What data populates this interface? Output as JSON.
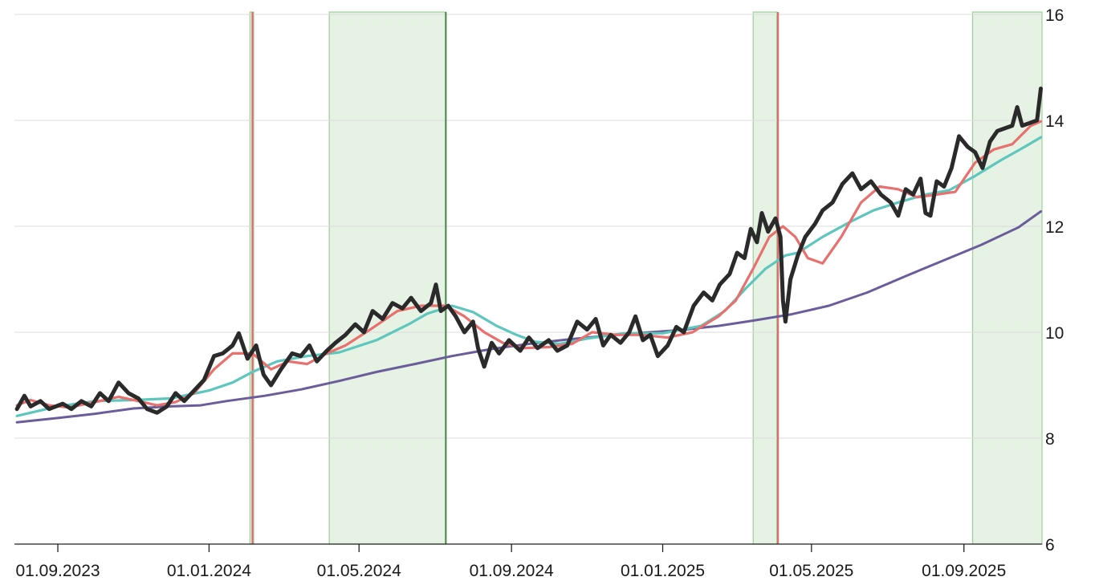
{
  "chart_data": {
    "type": "line",
    "title": "",
    "xlabel": "",
    "ylabel": "",
    "x_range": [
      "2023-07-28",
      "2025-11-03"
    ],
    "ylim": [
      6,
      16
    ],
    "y_axis_position": "right",
    "grid": "horizontal",
    "x_ticks": [
      {
        "date": "2023-09-01",
        "label": "01.09.2023"
      },
      {
        "date": "2024-01-01",
        "label": "01.01.2024"
      },
      {
        "date": "2024-05-01",
        "label": "01.05.2024"
      },
      {
        "date": "2024-09-01",
        "label": "01.09.2024"
      },
      {
        "date": "2025-01-01",
        "label": "01.01.2025"
      },
      {
        "date": "2025-05-01",
        "label": "01.05.2025"
      },
      {
        "date": "2025-09-01",
        "label": "01.09.2025"
      }
    ],
    "y_ticks": [
      {
        "value": 6,
        "label": "6"
      },
      {
        "value": 8,
        "label": "8"
      },
      {
        "value": 10,
        "label": "10"
      },
      {
        "value": 12,
        "label": "12"
      },
      {
        "value": 14,
        "label": "14"
      },
      {
        "value": 16,
        "label": "16"
      }
    ],
    "shaded_periods": [
      {
        "start": "2024-02-03",
        "end": "2024-02-06",
        "color": "#e6f2e4",
        "edge": "#9ccf98"
      },
      {
        "start": "2024-04-07",
        "end": "2024-07-10",
        "color": "#e6f2e4",
        "edge": "#9ccf98"
      },
      {
        "start": "2025-03-15",
        "end": "2025-04-03",
        "color": "#e6f2e4",
        "edge": "#9ccf98"
      },
      {
        "start": "2025-09-08",
        "end": "2025-11-03",
        "color": "#e6f2e4",
        "edge": "#9ccf98"
      }
    ],
    "vertical_lines": [
      {
        "date": "2024-02-05",
        "color": "#e06b6b"
      },
      {
        "date": "2024-07-10",
        "color": "#4f8f4f"
      },
      {
        "date": "2025-04-04",
        "color": "#e06b6b"
      }
    ],
    "series": [
      {
        "color": "#6a5d9a",
        "width": 3,
        "points": [
          [
            "2023-07-30",
            8.3
          ],
          [
            "2023-09-01",
            8.38
          ],
          [
            "2023-10-01",
            8.46
          ],
          [
            "2023-11-01",
            8.56
          ],
          [
            "2023-12-01",
            8.6
          ],
          [
            "2023-12-25",
            8.62
          ],
          [
            "2024-01-15",
            8.7
          ],
          [
            "2024-02-15",
            8.8
          ],
          [
            "2024-03-15",
            8.92
          ],
          [
            "2024-04-15",
            9.08
          ],
          [
            "2024-05-15",
            9.25
          ],
          [
            "2024-06-15",
            9.4
          ],
          [
            "2024-07-15",
            9.55
          ],
          [
            "2024-08-15",
            9.68
          ],
          [
            "2024-09-15",
            9.78
          ],
          [
            "2024-10-15",
            9.86
          ],
          [
            "2024-11-15",
            9.93
          ],
          [
            "2024-12-15",
            9.99
          ],
          [
            "2025-01-15",
            10.04
          ],
          [
            "2025-02-15",
            10.12
          ],
          [
            "2025-03-15",
            10.22
          ],
          [
            "2025-04-15",
            10.34
          ],
          [
            "2025-05-15",
            10.5
          ],
          [
            "2025-06-15",
            10.75
          ],
          [
            "2025-07-15",
            11.05
          ],
          [
            "2025-08-15",
            11.35
          ],
          [
            "2025-09-15",
            11.65
          ],
          [
            "2025-10-15",
            11.98
          ],
          [
            "2025-11-02",
            12.28
          ]
        ]
      },
      {
        "color": "#5ec7bd",
        "width": 3.2,
        "points": [
          [
            "2023-07-30",
            8.42
          ],
          [
            "2023-09-01",
            8.6
          ],
          [
            "2023-10-01",
            8.7
          ],
          [
            "2023-11-01",
            8.72
          ],
          [
            "2023-12-01",
            8.75
          ],
          [
            "2024-01-01",
            8.9
          ],
          [
            "2024-01-20",
            9.05
          ],
          [
            "2024-02-05",
            9.25
          ],
          [
            "2024-02-25",
            9.45
          ],
          [
            "2024-03-20",
            9.55
          ],
          [
            "2024-04-15",
            9.62
          ],
          [
            "2024-05-15",
            9.85
          ],
          [
            "2024-06-10",
            10.15
          ],
          [
            "2024-06-25",
            10.35
          ],
          [
            "2024-07-15",
            10.5
          ],
          [
            "2024-08-01",
            10.38
          ],
          [
            "2024-08-20",
            10.12
          ],
          [
            "2024-09-05",
            9.95
          ],
          [
            "2024-09-20",
            9.82
          ],
          [
            "2024-10-10",
            9.78
          ],
          [
            "2024-11-01",
            9.88
          ],
          [
            "2024-12-01",
            9.98
          ],
          [
            "2025-01-01",
            9.98
          ],
          [
            "2025-02-01",
            10.12
          ],
          [
            "2025-02-20",
            10.4
          ],
          [
            "2025-03-10",
            10.85
          ],
          [
            "2025-03-25",
            11.2
          ],
          [
            "2025-04-10",
            11.45
          ],
          [
            "2025-04-20",
            11.5
          ],
          [
            "2025-05-10",
            11.8
          ],
          [
            "2025-06-01",
            12.08
          ],
          [
            "2025-06-20",
            12.3
          ],
          [
            "2025-07-10",
            12.45
          ],
          [
            "2025-08-01",
            12.6
          ],
          [
            "2025-08-20",
            12.68
          ],
          [
            "2025-09-10",
            12.95
          ],
          [
            "2025-10-01",
            13.25
          ],
          [
            "2025-10-20",
            13.5
          ],
          [
            "2025-11-02",
            13.68
          ]
        ]
      },
      {
        "color": "#e8706e",
        "width": 3.2,
        "points": [
          [
            "2023-07-30",
            8.62
          ],
          [
            "2023-08-10",
            8.72
          ],
          [
            "2023-08-25",
            8.62
          ],
          [
            "2023-09-10",
            8.58
          ],
          [
            "2023-10-01",
            8.68
          ],
          [
            "2023-10-20",
            8.78
          ],
          [
            "2023-11-05",
            8.7
          ],
          [
            "2023-11-20",
            8.62
          ],
          [
            "2023-12-05",
            8.68
          ],
          [
            "2023-12-20",
            8.85
          ],
          [
            "2024-01-05",
            9.3
          ],
          [
            "2024-01-20",
            9.6
          ],
          [
            "2024-02-05",
            9.6
          ],
          [
            "2024-02-20",
            9.3
          ],
          [
            "2024-03-05",
            9.45
          ],
          [
            "2024-03-20",
            9.4
          ],
          [
            "2024-04-05",
            9.6
          ],
          [
            "2024-04-20",
            9.75
          ],
          [
            "2024-05-10",
            10.05
          ],
          [
            "2024-06-01",
            10.4
          ],
          [
            "2024-06-20",
            10.5
          ],
          [
            "2024-07-10",
            10.5
          ],
          [
            "2024-07-25",
            10.3
          ],
          [
            "2024-08-10",
            10.0
          ],
          [
            "2024-08-25",
            9.8
          ],
          [
            "2024-09-10",
            9.7
          ],
          [
            "2024-10-01",
            9.72
          ],
          [
            "2024-10-20",
            9.78
          ],
          [
            "2024-11-05",
            10.0
          ],
          [
            "2024-11-25",
            9.95
          ],
          [
            "2024-12-15",
            9.95
          ],
          [
            "2025-01-05",
            9.9
          ],
          [
            "2025-01-25",
            10.0
          ],
          [
            "2025-02-15",
            10.3
          ],
          [
            "2025-03-01",
            10.6
          ],
          [
            "2025-03-15",
            11.2
          ],
          [
            "2025-03-28",
            11.8
          ],
          [
            "2025-04-08",
            12.0
          ],
          [
            "2025-04-18",
            11.8
          ],
          [
            "2025-04-28",
            11.4
          ],
          [
            "2025-05-10",
            11.3
          ],
          [
            "2025-05-25",
            11.8
          ],
          [
            "2025-06-10",
            12.45
          ],
          [
            "2025-06-25",
            12.75
          ],
          [
            "2025-07-10",
            12.7
          ],
          [
            "2025-07-25",
            12.55
          ],
          [
            "2025-08-10",
            12.6
          ],
          [
            "2025-08-25",
            12.65
          ],
          [
            "2025-09-10",
            13.2
          ],
          [
            "2025-09-25",
            13.45
          ],
          [
            "2025-10-10",
            13.55
          ],
          [
            "2025-10-25",
            13.9
          ],
          [
            "2025-11-02",
            13.98
          ]
        ]
      },
      {
        "color": "#2a2a2a",
        "width": 5,
        "points": [
          [
            "2023-07-30",
            8.55
          ],
          [
            "2023-08-05",
            8.8
          ],
          [
            "2023-08-10",
            8.6
          ],
          [
            "2023-08-18",
            8.7
          ],
          [
            "2023-08-25",
            8.55
          ],
          [
            "2023-09-05",
            8.65
          ],
          [
            "2023-09-12",
            8.55
          ],
          [
            "2023-09-20",
            8.7
          ],
          [
            "2023-09-28",
            8.6
          ],
          [
            "2023-10-05",
            8.85
          ],
          [
            "2023-10-12",
            8.7
          ],
          [
            "2023-10-20",
            9.05
          ],
          [
            "2023-10-28",
            8.85
          ],
          [
            "2023-11-05",
            8.75
          ],
          [
            "2023-11-12",
            8.55
          ],
          [
            "2023-11-20",
            8.48
          ],
          [
            "2023-11-28",
            8.6
          ],
          [
            "2023-12-05",
            8.85
          ],
          [
            "2023-12-12",
            8.7
          ],
          [
            "2023-12-20",
            8.9
          ],
          [
            "2023-12-28",
            9.1
          ],
          [
            "2024-01-05",
            9.55
          ],
          [
            "2024-01-12",
            9.6
          ],
          [
            "2024-01-20",
            9.75
          ],
          [
            "2024-01-25",
            9.98
          ],
          [
            "2024-02-01",
            9.5
          ],
          [
            "2024-02-08",
            9.75
          ],
          [
            "2024-02-14",
            9.2
          ],
          [
            "2024-02-20",
            9.0
          ],
          [
            "2024-02-28",
            9.3
          ],
          [
            "2024-03-08",
            9.6
          ],
          [
            "2024-03-15",
            9.55
          ],
          [
            "2024-03-22",
            9.75
          ],
          [
            "2024-03-28",
            9.45
          ],
          [
            "2024-04-05",
            9.65
          ],
          [
            "2024-04-12",
            9.8
          ],
          [
            "2024-04-20",
            9.95
          ],
          [
            "2024-04-28",
            10.15
          ],
          [
            "2024-05-05",
            10.0
          ],
          [
            "2024-05-12",
            10.4
          ],
          [
            "2024-05-20",
            10.25
          ],
          [
            "2024-05-28",
            10.55
          ],
          [
            "2024-06-05",
            10.45
          ],
          [
            "2024-06-12",
            10.65
          ],
          [
            "2024-06-20",
            10.4
          ],
          [
            "2024-06-28",
            10.55
          ],
          [
            "2024-07-02",
            10.9
          ],
          [
            "2024-07-06",
            10.4
          ],
          [
            "2024-07-12",
            10.5
          ],
          [
            "2024-07-18",
            10.3
          ],
          [
            "2024-07-25",
            10.0
          ],
          [
            "2024-08-01",
            10.2
          ],
          [
            "2024-08-05",
            9.7
          ],
          [
            "2024-08-10",
            9.35
          ],
          [
            "2024-08-16",
            9.8
          ],
          [
            "2024-08-22",
            9.6
          ],
          [
            "2024-08-30",
            9.85
          ],
          [
            "2024-09-08",
            9.65
          ],
          [
            "2024-09-15",
            9.9
          ],
          [
            "2024-09-22",
            9.7
          ],
          [
            "2024-10-01",
            9.85
          ],
          [
            "2024-10-08",
            9.65
          ],
          [
            "2024-10-16",
            9.75
          ],
          [
            "2024-10-24",
            10.2
          ],
          [
            "2024-11-01",
            10.05
          ],
          [
            "2024-11-08",
            10.25
          ],
          [
            "2024-11-14",
            9.75
          ],
          [
            "2024-11-20",
            9.95
          ],
          [
            "2024-11-28",
            9.8
          ],
          [
            "2024-12-05",
            10.0
          ],
          [
            "2024-12-10",
            10.3
          ],
          [
            "2024-12-16",
            9.85
          ],
          [
            "2024-12-22",
            9.95
          ],
          [
            "2024-12-28",
            9.55
          ],
          [
            "2025-01-05",
            9.75
          ],
          [
            "2025-01-12",
            10.1
          ],
          [
            "2025-01-18",
            10.0
          ],
          [
            "2025-01-26",
            10.5
          ],
          [
            "2025-02-03",
            10.75
          ],
          [
            "2025-02-10",
            10.6
          ],
          [
            "2025-02-16",
            10.9
          ],
          [
            "2025-02-24",
            11.1
          ],
          [
            "2025-03-02",
            11.5
          ],
          [
            "2025-03-08",
            11.4
          ],
          [
            "2025-03-13",
            11.95
          ],
          [
            "2025-03-18",
            11.7
          ],
          [
            "2025-03-22",
            12.25
          ],
          [
            "2025-03-27",
            11.9
          ],
          [
            "2025-04-02",
            12.15
          ],
          [
            "2025-04-06",
            11.8
          ],
          [
            "2025-04-08",
            10.6
          ],
          [
            "2025-04-10",
            10.2
          ],
          [
            "2025-04-14",
            11.0
          ],
          [
            "2025-04-20",
            11.45
          ],
          [
            "2025-04-26",
            11.8
          ],
          [
            "2025-05-04",
            12.05
          ],
          [
            "2025-05-10",
            12.3
          ],
          [
            "2025-05-18",
            12.45
          ],
          [
            "2025-05-26",
            12.8
          ],
          [
            "2025-06-03",
            13.0
          ],
          [
            "2025-06-10",
            12.7
          ],
          [
            "2025-06-18",
            12.85
          ],
          [
            "2025-06-26",
            12.6
          ],
          [
            "2025-07-04",
            12.45
          ],
          [
            "2025-07-10",
            12.2
          ],
          [
            "2025-07-16",
            12.7
          ],
          [
            "2025-07-22",
            12.6
          ],
          [
            "2025-07-28",
            12.9
          ],
          [
            "2025-08-01",
            12.25
          ],
          [
            "2025-08-05",
            12.2
          ],
          [
            "2025-08-10",
            12.85
          ],
          [
            "2025-08-16",
            12.75
          ],
          [
            "2025-08-22",
            13.1
          ],
          [
            "2025-08-28",
            13.7
          ],
          [
            "2025-09-04",
            13.5
          ],
          [
            "2025-09-10",
            13.4
          ],
          [
            "2025-09-16",
            13.1
          ],
          [
            "2025-09-22",
            13.6
          ],
          [
            "2025-09-28",
            13.8
          ],
          [
            "2025-10-04",
            13.85
          ],
          [
            "2025-10-10",
            13.9
          ],
          [
            "2025-10-14",
            14.25
          ],
          [
            "2025-10-18",
            13.9
          ],
          [
            "2025-10-24",
            13.95
          ],
          [
            "2025-10-30",
            14.0
          ],
          [
            "2025-11-02",
            14.6
          ]
        ]
      }
    ]
  }
}
